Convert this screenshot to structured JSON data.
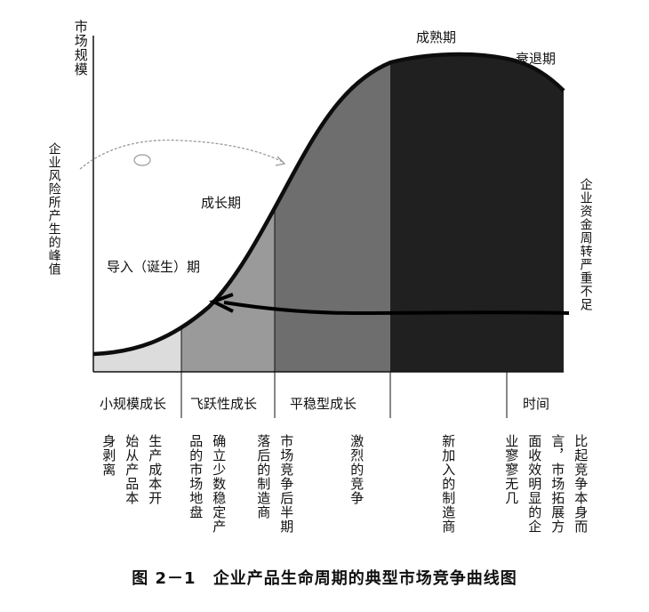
{
  "axis": {
    "y_label": "市场规模",
    "x_label": "时间"
  },
  "left_note": "企业风险所产生的峰值",
  "right_note": "企业资金周转严重不足",
  "curve_stages": {
    "intro": "导入（诞生）期",
    "growth": "成长期",
    "maturity": "成熟期",
    "decline": "衰退期"
  },
  "phases": [
    "小规模成长",
    "飞跃性成长",
    "平稳型成长"
  ],
  "descriptions": [
    "身剥离",
    "始从产品本",
    "生产成本开",
    "品的市场地盘",
    "确立少数稳定产",
    "落后的制造商",
    "市场竞争后半期",
    "激烈的竞争",
    "新加入的制造商",
    "业寥寥无几",
    "面收效明显的企",
    "言，市场拓展方",
    "比起竞争本身而"
  ],
  "caption": {
    "figure_no": "图 2－1",
    "title": "企业产品生命周期的典型市场竞争曲线图"
  },
  "colors": {
    "intro_fill": "#dcdcdc",
    "growth1_fill": "#9a9a9a",
    "growth2_fill": "#6e6e6e",
    "maturity_fill": "#202020",
    "curve": "#0d0d0d"
  }
}
